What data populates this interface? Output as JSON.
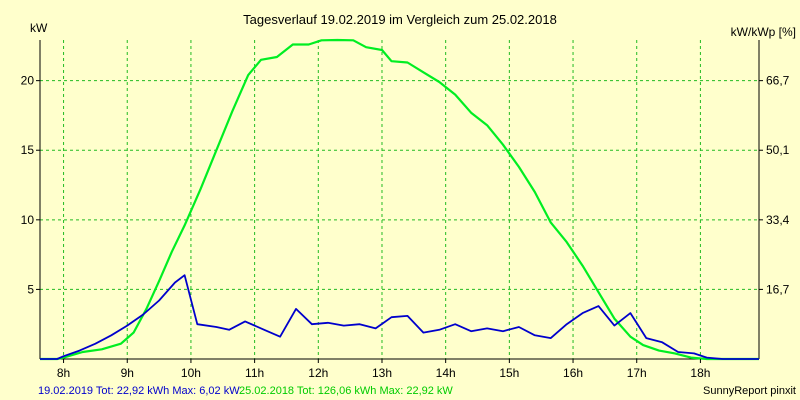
{
  "chart_data": {
    "type": "line",
    "title": "Tagesverlauf 19.02.2019 im Vergleich zum 25.02.2018",
    "ylabel_left": "kW",
    "ylabel_right": "kW/kWp [%]",
    "x_ticks": [
      {
        "h": 8,
        "label": "8h"
      },
      {
        "h": 9,
        "label": "9h"
      },
      {
        "h": 10,
        "label": "10h"
      },
      {
        "h": 11,
        "label": "11h"
      },
      {
        "h": 12,
        "label": "12h"
      },
      {
        "h": 13,
        "label": "13h"
      },
      {
        "h": 14,
        "label": "14h"
      },
      {
        "h": 15,
        "label": "15h"
      },
      {
        "h": 16,
        "label": "16h"
      },
      {
        "h": 17,
        "label": "17h"
      },
      {
        "h": 18,
        "label": "18h"
      }
    ],
    "xlim": [
      7.63,
      18.92
    ],
    "ylim": [
      0,
      22.92
    ],
    "y_ticks_left": [
      {
        "v": 5,
        "label": "5"
      },
      {
        "v": 10,
        "label": "10"
      },
      {
        "v": 15,
        "label": "15"
      },
      {
        "v": 20,
        "label": "20"
      }
    ],
    "y_ticks_right": [
      {
        "v": 5,
        "label": "16,7"
      },
      {
        "v": 10,
        "label": "33,4"
      },
      {
        "v": 15,
        "label": "50,1"
      },
      {
        "v": 20,
        "label": "66,7"
      }
    ],
    "grid": true,
    "series": [
      {
        "name": "19.02.2019",
        "color": "#0000cc",
        "x": [
          7.63,
          7.9,
          8.0,
          8.25,
          8.5,
          8.75,
          9.0,
          9.25,
          9.5,
          9.75,
          9.9,
          10.1,
          10.4,
          10.6,
          10.85,
          11.15,
          11.4,
          11.65,
          11.9,
          12.15,
          12.4,
          12.65,
          12.9,
          13.15,
          13.4,
          13.65,
          13.9,
          14.15,
          14.4,
          14.65,
          14.9,
          15.15,
          15.4,
          15.65,
          15.9,
          16.15,
          16.4,
          16.65,
          16.9,
          17.15,
          17.4,
          17.65,
          17.9,
          18.1,
          18.35,
          18.92
        ],
        "values": [
          0,
          0,
          0.2,
          0.6,
          1.1,
          1.7,
          2.4,
          3.2,
          4.2,
          5.5,
          6.02,
          2.5,
          2.3,
          2.1,
          2.7,
          2.1,
          1.6,
          3.6,
          2.5,
          2.6,
          2.4,
          2.5,
          2.2,
          3.0,
          3.1,
          1.9,
          2.1,
          2.5,
          2.0,
          2.2,
          2.0,
          2.3,
          1.7,
          1.5,
          2.5,
          3.3,
          3.8,
          2.4,
          3.3,
          1.5,
          1.2,
          0.5,
          0.4,
          0.1,
          0,
          0
        ]
      },
      {
        "name": "25.02.2018",
        "color": "#00ee22",
        "x": [
          7.63,
          7.9,
          8.0,
          8.3,
          8.6,
          8.9,
          9.1,
          9.3,
          9.5,
          9.7,
          9.9,
          10.15,
          10.4,
          10.65,
          10.9,
          11.1,
          11.35,
          11.6,
          11.85,
          12.05,
          12.3,
          12.55,
          12.75,
          13.0,
          13.15,
          13.4,
          13.65,
          13.9,
          14.15,
          14.4,
          14.65,
          14.9,
          15.15,
          15.4,
          15.65,
          15.9,
          16.15,
          16.4,
          16.65,
          16.9,
          17.1,
          17.35,
          17.6,
          17.85,
          18.1,
          18.35,
          18.92
        ],
        "values": [
          0,
          0,
          0.1,
          0.5,
          0.7,
          1.1,
          1.9,
          3.6,
          5.6,
          7.7,
          9.6,
          12.2,
          15.0,
          17.8,
          20.4,
          21.5,
          21.7,
          22.6,
          22.6,
          22.9,
          22.92,
          22.9,
          22.4,
          22.2,
          21.4,
          21.3,
          20.6,
          19.9,
          19.0,
          17.7,
          16.8,
          15.4,
          13.8,
          12.0,
          9.8,
          8.4,
          6.7,
          4.8,
          2.9,
          1.6,
          1.0,
          0.6,
          0.4,
          0.1,
          0,
          0,
          0
        ]
      }
    ],
    "footer": {
      "s1_summary": "19.02.2019 Tot: 22,92 kWh Max: 6,02 kW",
      "s2_summary": "25.02.2018 Tot: 126,06 kWh Max: 22,92 kW",
      "credit": "SunnyReport pinxit"
    }
  }
}
